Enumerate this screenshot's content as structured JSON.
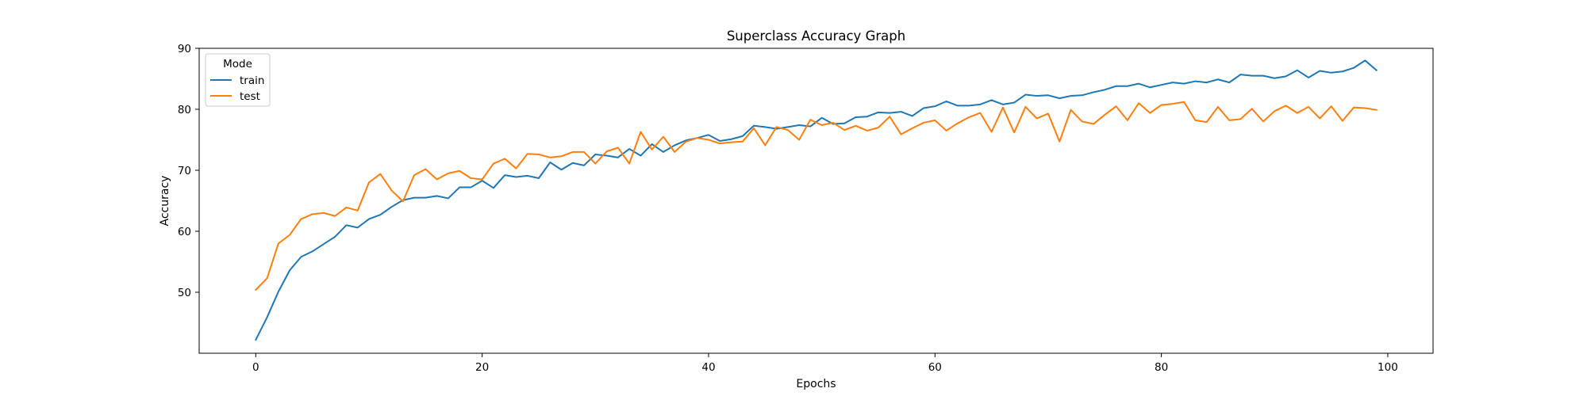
{
  "chart_data": {
    "type": "line",
    "title": "Superclass Accuracy Graph",
    "xlabel": "Epochs",
    "ylabel": "Accuracy",
    "xlim": [
      -5,
      104
    ],
    "ylim": [
      40,
      90
    ],
    "xticks": [
      0,
      20,
      40,
      60,
      80,
      100
    ],
    "yticks": [
      50,
      60,
      70,
      80,
      90
    ],
    "grid": false,
    "legend": {
      "title": "Mode",
      "placement": "top-left"
    },
    "x": [
      0,
      1,
      2,
      3,
      4,
      5,
      6,
      7,
      8,
      9,
      10,
      11,
      12,
      13,
      14,
      15,
      16,
      17,
      18,
      19,
      20,
      21,
      22,
      23,
      24,
      25,
      26,
      27,
      28,
      29,
      30,
      31,
      32,
      33,
      34,
      35,
      36,
      37,
      38,
      39,
      40,
      41,
      42,
      43,
      44,
      45,
      46,
      47,
      48,
      49,
      50,
      51,
      52,
      53,
      54,
      55,
      56,
      57,
      58,
      59,
      60,
      61,
      62,
      63,
      64,
      65,
      66,
      67,
      68,
      69,
      70,
      71,
      72,
      73,
      74,
      75,
      76,
      77,
      78,
      79,
      80,
      81,
      82,
      83,
      84,
      85,
      86,
      87,
      88,
      89,
      90,
      91,
      92,
      93,
      94,
      95,
      96,
      97,
      98,
      99
    ],
    "series": [
      {
        "name": "train",
        "color": "#1f77b4",
        "values": [
          42.2,
          45.9,
          50.1,
          53.6,
          55.8,
          56.7,
          57.9,
          59.1,
          61.0,
          60.6,
          62.0,
          62.7,
          64.0,
          65.1,
          65.5,
          65.5,
          65.8,
          65.4,
          67.2,
          67.2,
          68.3,
          67.1,
          69.2,
          68.9,
          69.1,
          68.7,
          71.3,
          70.1,
          71.2,
          70.8,
          72.6,
          72.4,
          72.1,
          73.5,
          72.4,
          74.3,
          73.0,
          74.1,
          74.9,
          75.3,
          75.8,
          74.8,
          75.1,
          75.6,
          77.3,
          77.1,
          76.8,
          77.1,
          77.4,
          77.2,
          78.6,
          77.6,
          77.7,
          78.7,
          78.8,
          79.5,
          79.4,
          79.6,
          78.9,
          80.2,
          80.5,
          81.3,
          80.6,
          80.6,
          80.8,
          81.5,
          80.8,
          81.1,
          82.4,
          82.2,
          82.3,
          81.8,
          82.2,
          82.3,
          82.8,
          83.2,
          83.8,
          83.8,
          84.2,
          83.6,
          84.0,
          84.4,
          84.2,
          84.6,
          84.4,
          84.9,
          84.4,
          85.7,
          85.5,
          85.5,
          85.1,
          85.4,
          86.4,
          85.2,
          86.3,
          86.0,
          86.2,
          86.8,
          88.0,
          86.4
        ]
      },
      {
        "name": "test",
        "color": "#ff7f0e",
        "values": [
          50.4,
          52.3,
          58.0,
          59.4,
          62.0,
          62.8,
          63.0,
          62.5,
          63.9,
          63.4,
          68.0,
          69.4,
          66.7,
          64.9,
          69.2,
          70.2,
          68.5,
          69.5,
          69.9,
          68.7,
          68.5,
          71.1,
          71.9,
          70.3,
          72.7,
          72.6,
          72.1,
          72.3,
          73.0,
          73.0,
          71.1,
          73.1,
          73.7,
          71.1,
          76.3,
          73.4,
          75.5,
          73.0,
          74.7,
          75.3,
          75.0,
          74.4,
          74.6,
          74.7,
          76.9,
          74.1,
          77.1,
          76.6,
          75.0,
          78.3,
          77.4,
          77.8,
          76.6,
          77.3,
          76.5,
          77.0,
          78.8,
          75.9,
          76.9,
          77.8,
          78.2,
          76.5,
          77.7,
          78.7,
          79.4,
          76.3,
          80.3,
          76.2,
          80.4,
          78.5,
          79.3,
          74.7,
          79.9,
          78.0,
          77.6,
          79.1,
          80.5,
          78.2,
          81.0,
          79.4,
          80.7,
          80.9,
          81.2,
          78.2,
          77.9,
          80.4,
          78.2,
          78.4,
          80.1,
          78.0,
          79.7,
          80.6,
          79.4,
          80.4,
          78.5,
          80.5,
          78.1,
          80.3,
          80.2,
          79.9
        ]
      }
    ]
  }
}
